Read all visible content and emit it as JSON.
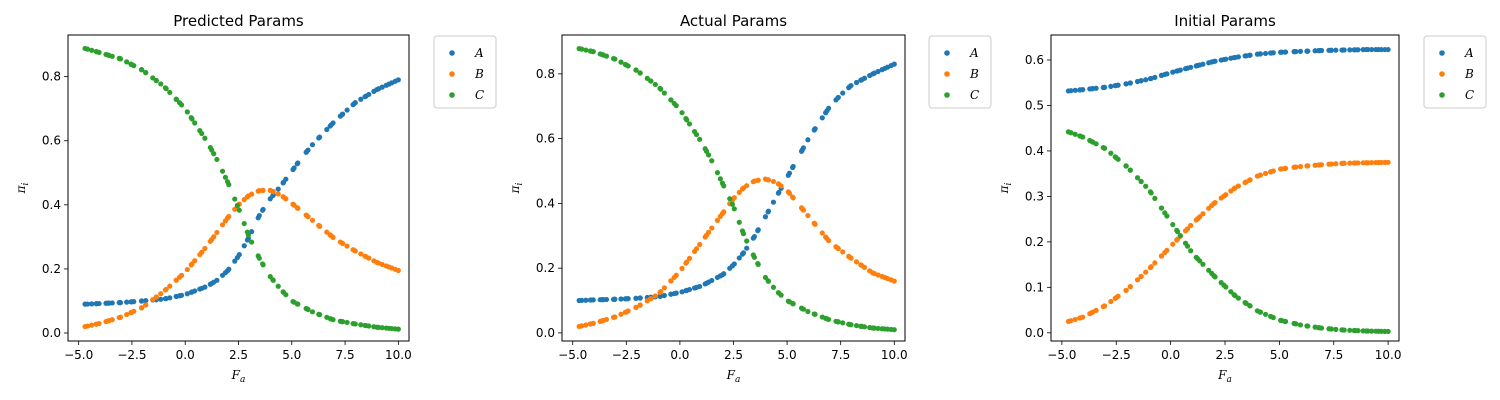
{
  "figure": {
    "background": "#ffffff"
  },
  "chart_data": [
    {
      "type": "scatter",
      "title": "Predicted Params",
      "xlabel": "F",
      "xlabel_sub": "a",
      "ylabel": "π",
      "ylabel_sub": "i",
      "xlim": [
        -5.5,
        10.5
      ],
      "ylim": [
        -0.025,
        0.93
      ],
      "xticks": [
        -5.0,
        -2.5,
        0.0,
        2.5,
        5.0,
        7.5,
        10.0
      ],
      "xtick_labels": [
        "−5.0",
        "−2.5",
        "0.0",
        "2.5",
        "5.0",
        "7.5",
        "10.0"
      ],
      "yticks": [
        0.0,
        0.2,
        0.4,
        0.6,
        0.8
      ],
      "ytick_labels": [
        "0.0",
        "0.2",
        "0.4",
        "0.6",
        "0.8"
      ],
      "legend_position": "outside-right",
      "x_range": [
        -4.7,
        10.0
      ],
      "series": [
        {
          "name": "A",
          "color": "#1f77b4",
          "x": [
            -4.7,
            -4.0,
            -3.0,
            -2.0,
            -1.0,
            0.0,
            1.0,
            1.5,
            2.0,
            2.5,
            3.0,
            3.5,
            4.0,
            4.5,
            5.0,
            5.5,
            6.0,
            7.0,
            8.0,
            9.0,
            10.0
          ],
          "y": [
            0.09,
            0.092,
            0.095,
            0.1,
            0.106,
            0.12,
            0.145,
            0.165,
            0.195,
            0.24,
            0.3,
            0.37,
            0.42,
            0.46,
            0.505,
            0.55,
            0.59,
            0.66,
            0.72,
            0.76,
            0.79
          ]
        },
        {
          "name": "B",
          "color": "#ff7f0e",
          "x": [
            -4.7,
            -4.0,
            -3.0,
            -2.0,
            -1.0,
            0.0,
            1.0,
            2.0,
            2.5,
            3.0,
            3.5,
            4.0,
            4.5,
            5.0,
            6.0,
            7.0,
            8.0,
            9.0,
            10.0
          ],
          "y": [
            0.02,
            0.03,
            0.05,
            0.08,
            0.13,
            0.19,
            0.27,
            0.36,
            0.4,
            0.43,
            0.445,
            0.445,
            0.43,
            0.405,
            0.35,
            0.295,
            0.255,
            0.22,
            0.195
          ]
        },
        {
          "name": "C",
          "color": "#2ca02c",
          "x": [
            -4.7,
            -4.0,
            -3.0,
            -2.0,
            -1.0,
            0.0,
            1.0,
            1.5,
            2.0,
            2.5,
            3.0,
            3.5,
            4.0,
            4.5,
            5.0,
            6.0,
            7.0,
            8.0,
            9.0,
            10.0
          ],
          "y": [
            0.888,
            0.875,
            0.855,
            0.82,
            0.77,
            0.7,
            0.6,
            0.54,
            0.47,
            0.39,
            0.3,
            0.23,
            0.175,
            0.135,
            0.1,
            0.065,
            0.04,
            0.028,
            0.018,
            0.012
          ]
        }
      ]
    },
    {
      "type": "scatter",
      "title": "Actual Params",
      "xlabel": "F",
      "xlabel_sub": "a",
      "ylabel": "π",
      "ylabel_sub": "i",
      "xlim": [
        -5.5,
        10.5
      ],
      "ylim": [
        -0.025,
        0.92
      ],
      "xticks": [
        -5.0,
        -2.5,
        0.0,
        2.5,
        5.0,
        7.5,
        10.0
      ],
      "xtick_labels": [
        "−5.0",
        "−2.5",
        "0.0",
        "2.5",
        "5.0",
        "7.5",
        "10.0"
      ],
      "yticks": [
        0.0,
        0.2,
        0.4,
        0.6,
        0.8
      ],
      "ytick_labels": [
        "0.0",
        "0.2",
        "0.4",
        "0.6",
        "0.8"
      ],
      "legend_position": "outside-right",
      "x_range": [
        -4.7,
        10.0
      ],
      "series": [
        {
          "name": "A",
          "color": "#1f77b4",
          "x": [
            -4.7,
            -4.0,
            -3.0,
            -2.0,
            -1.0,
            0.0,
            1.0,
            2.0,
            2.5,
            3.0,
            3.5,
            4.0,
            4.5,
            5.0,
            5.5,
            6.0,
            6.5,
            7.0,
            7.5,
            8.0,
            9.0,
            10.0
          ],
          "y": [
            0.1,
            0.102,
            0.104,
            0.107,
            0.112,
            0.125,
            0.145,
            0.18,
            0.21,
            0.25,
            0.3,
            0.36,
            0.42,
            0.48,
            0.54,
            0.6,
            0.65,
            0.7,
            0.735,
            0.765,
            0.8,
            0.83
          ]
        },
        {
          "name": "B",
          "color": "#ff7f0e",
          "x": [
            -4.7,
            -4.0,
            -3.0,
            -2.0,
            -1.0,
            0.0,
            1.0,
            2.0,
            2.5,
            3.0,
            3.5,
            4.0,
            4.5,
            5.0,
            5.5,
            6.0,
            7.0,
            8.0,
            9.0,
            10.0
          ],
          "y": [
            0.02,
            0.03,
            0.05,
            0.08,
            0.12,
            0.19,
            0.28,
            0.37,
            0.415,
            0.45,
            0.47,
            0.475,
            0.465,
            0.44,
            0.4,
            0.36,
            0.28,
            0.23,
            0.185,
            0.16
          ]
        },
        {
          "name": "C",
          "color": "#2ca02c",
          "x": [
            -4.7,
            -4.0,
            -3.0,
            -2.0,
            -1.0,
            0.0,
            1.0,
            1.5,
            2.0,
            2.5,
            3.0,
            3.5,
            4.0,
            4.5,
            5.0,
            6.0,
            7.0,
            8.0,
            9.0,
            10.0
          ],
          "y": [
            0.878,
            0.868,
            0.845,
            0.81,
            0.76,
            0.69,
            0.59,
            0.53,
            0.46,
            0.39,
            0.3,
            0.23,
            0.17,
            0.13,
            0.1,
            0.065,
            0.04,
            0.025,
            0.015,
            0.01
          ]
        }
      ]
    },
    {
      "type": "scatter",
      "title": "Initial Params",
      "xlabel": "F",
      "xlabel_sub": "a",
      "ylabel": "π",
      "ylabel_sub": "i",
      "xlim": [
        -5.5,
        10.5
      ],
      "ylim": [
        -0.018,
        0.655
      ],
      "xticks": [
        -5.0,
        -2.5,
        0.0,
        2.5,
        5.0,
        7.5,
        10.0
      ],
      "xtick_labels": [
        "−5.0",
        "−2.5",
        "0.0",
        "2.5",
        "5.0",
        "7.5",
        "10.0"
      ],
      "yticks": [
        0.0,
        0.1,
        0.2,
        0.3,
        0.4,
        0.5,
        0.6
      ],
      "ytick_labels": [
        "0.0",
        "0.1",
        "0.2",
        "0.3",
        "0.4",
        "0.5",
        "0.6"
      ],
      "legend_position": "outside-right",
      "x_range": [
        -4.7,
        10.0
      ],
      "series": [
        {
          "name": "A",
          "color": "#1f77b4",
          "x": [
            -4.7,
            -4.0,
            -3.0,
            -2.0,
            -1.0,
            0.0,
            1.0,
            2.0,
            3.0,
            4.0,
            5.0,
            6.0,
            7.0,
            8.0,
            9.0,
            10.0
          ],
          "y": [
            0.532,
            0.535,
            0.54,
            0.548,
            0.558,
            0.572,
            0.585,
            0.597,
            0.606,
            0.613,
            0.617,
            0.619,
            0.621,
            0.622,
            0.623,
            0.623
          ]
        },
        {
          "name": "B",
          "color": "#ff7f0e",
          "x": [
            -4.7,
            -4.0,
            -3.0,
            -2.0,
            -1.0,
            0.0,
            0.5,
            1.0,
            2.0,
            3.0,
            4.0,
            5.0,
            6.0,
            7.0,
            8.0,
            9.0,
            10.0
          ],
          "y": [
            0.025,
            0.035,
            0.06,
            0.095,
            0.14,
            0.19,
            0.215,
            0.24,
            0.285,
            0.32,
            0.345,
            0.36,
            0.366,
            0.37,
            0.373,
            0.374,
            0.375
          ]
        },
        {
          "name": "C",
          "color": "#2ca02c",
          "x": [
            -4.7,
            -4.0,
            -3.0,
            -2.0,
            -1.0,
            0.0,
            0.5,
            1.0,
            2.0,
            3.0,
            4.0,
            5.0,
            6.0,
            7.0,
            8.0,
            9.0,
            10.0
          ],
          "y": [
            0.442,
            0.43,
            0.405,
            0.365,
            0.315,
            0.245,
            0.21,
            0.175,
            0.125,
            0.08,
            0.048,
            0.028,
            0.017,
            0.01,
            0.006,
            0.004,
            0.003
          ]
        }
      ]
    }
  ]
}
